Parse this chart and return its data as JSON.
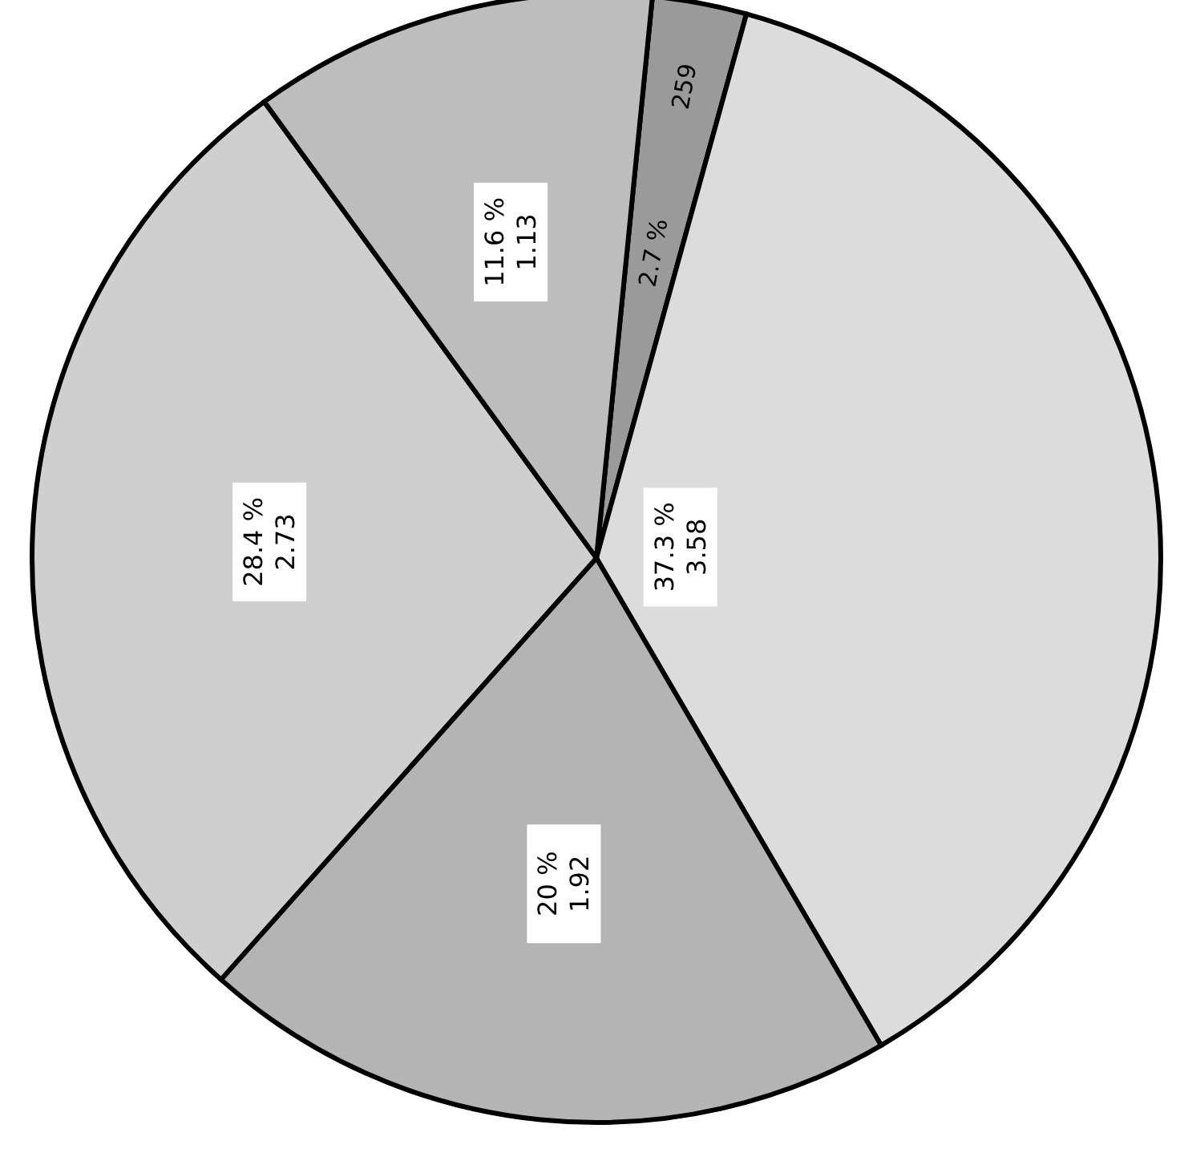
{
  "chart_data": {
    "type": "pie",
    "categories": [
      null,
      null,
      null,
      null,
      null
    ],
    "values": [
      2.7,
      37.3,
      20,
      28.4,
      11.6
    ],
    "value_labels": [
      "2.7 %\n259",
      "37.3 %\n3.58",
      "20 %\n1.92",
      "28.4 %\n2.73",
      "11.6 %\n1.13"
    ],
    "colors": [
      "#9a9a9a",
      "#dcdcdc",
      "#b4b4b4",
      "#cfcfcf",
      "#bdbdbd"
    ],
    "legend": false
  }
}
